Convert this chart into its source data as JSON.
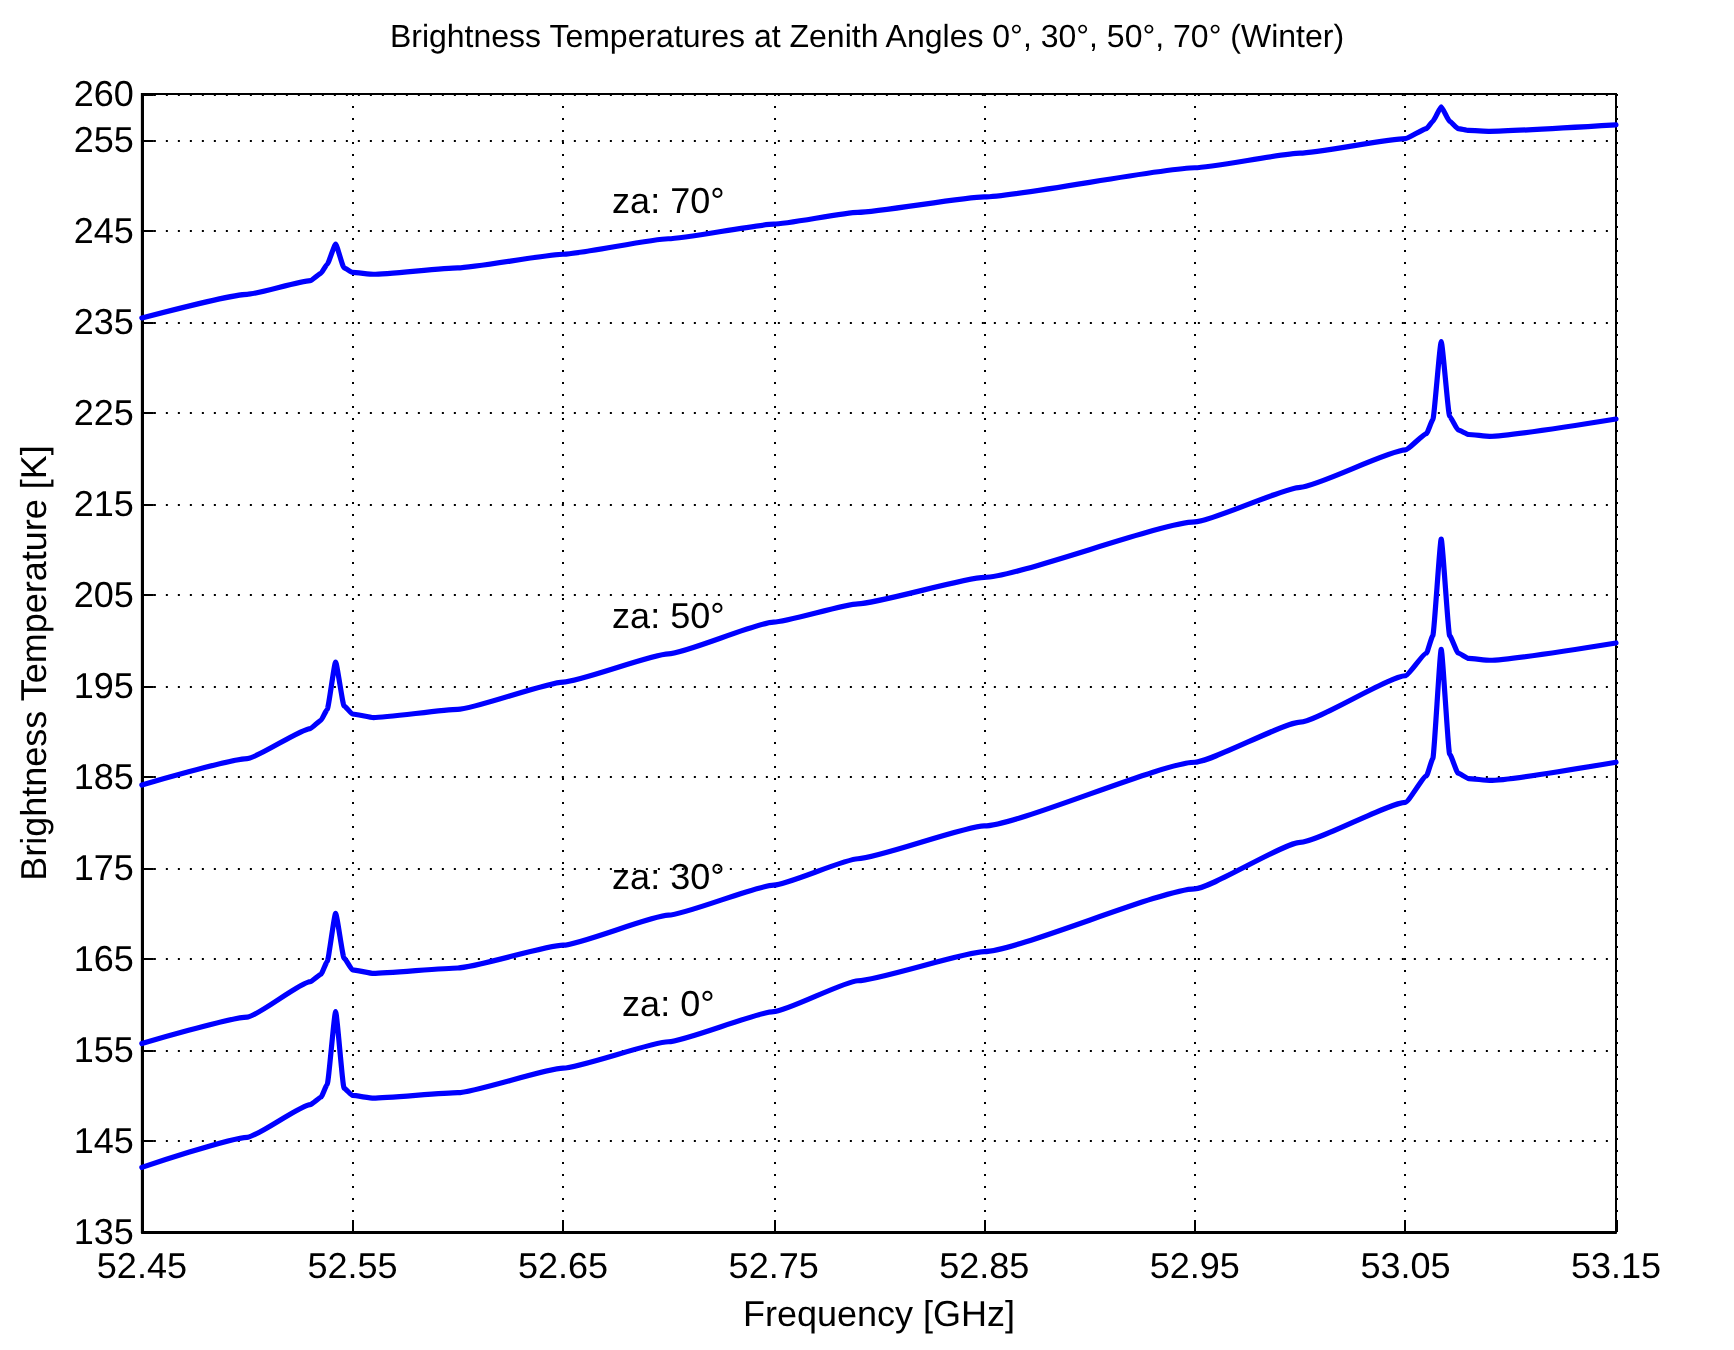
{
  "chart_data": {
    "type": "line",
    "title": "Brightness Temperatures at Zenith Angles 0°, 30°, 50°, 70° (Winter)",
    "xlabel": "Frequency [GHz]",
    "ylabel": "Brightness Temperature [K]",
    "xlim": [
      52.45,
      53.15
    ],
    "xticks": [
      52.45,
      52.55,
      52.65,
      52.75,
      52.85,
      52.95,
      53.05,
      53.15
    ],
    "ylim": [
      135,
      260
    ],
    "yticks": [
      135,
      145,
      155,
      165,
      175,
      185,
      195,
      205,
      215,
      225,
      235,
      245,
      255,
      260
    ],
    "grid": true,
    "marker": "none",
    "line_style": "solid",
    "x": [
      52.45,
      52.5,
      52.53,
      52.535,
      52.538,
      52.542,
      52.546,
      52.55,
      52.56,
      52.6,
      52.65,
      52.7,
      52.75,
      52.79,
      52.85,
      52.95,
      53.0,
      53.05,
      53.06,
      53.063,
      53.067,
      53.071,
      53.075,
      53.08,
      53.09,
      53.15
    ],
    "series": [
      {
        "name": "za: 0°",
        "color": "#0000ff",
        "values": [
          142.1,
          145.4,
          149.0,
          149.8,
          151.2,
          159.2,
          150.8,
          150.0,
          149.7,
          150.3,
          153.0,
          155.9,
          159.2,
          162.6,
          165.8,
          172.7,
          177.8,
          182.2,
          185.1,
          187.0,
          199.0,
          187.5,
          185.4,
          184.8,
          184.6,
          186.6
        ]
      },
      {
        "name": "za: 30°",
        "color": "#0000ff",
        "values": [
          155.7,
          158.6,
          162.5,
          163.3,
          164.7,
          170.0,
          165.1,
          163.8,
          163.4,
          164.0,
          166.5,
          169.8,
          173.1,
          176.0,
          179.6,
          186.6,
          191.0,
          196.1,
          198.6,
          200.5,
          211.1,
          200.5,
          198.6,
          198.0,
          197.8,
          199.7
        ]
      },
      {
        "name": "za: 50°",
        "color": "#0000ff",
        "values": [
          184.1,
          187.0,
          190.3,
          191.2,
          192.4,
          197.6,
          192.8,
          191.9,
          191.5,
          192.4,
          195.4,
          198.5,
          202.0,
          204.0,
          206.9,
          213.0,
          216.8,
          220.9,
          222.7,
          224.2,
          232.8,
          224.6,
          223.1,
          222.6,
          222.4,
          224.3
        ]
      },
      {
        "name": "za: 70°",
        "color": "#0000ff",
        "values": [
          235.4,
          238.0,
          239.5,
          240.3,
          241.3,
          243.5,
          240.9,
          240.4,
          240.2,
          240.9,
          242.4,
          244.1,
          245.7,
          247.0,
          248.7,
          251.9,
          253.5,
          255.1,
          256.2,
          257.0,
          258.6,
          257.0,
          256.2,
          256.0,
          255.9,
          256.6
        ]
      }
    ]
  }
}
